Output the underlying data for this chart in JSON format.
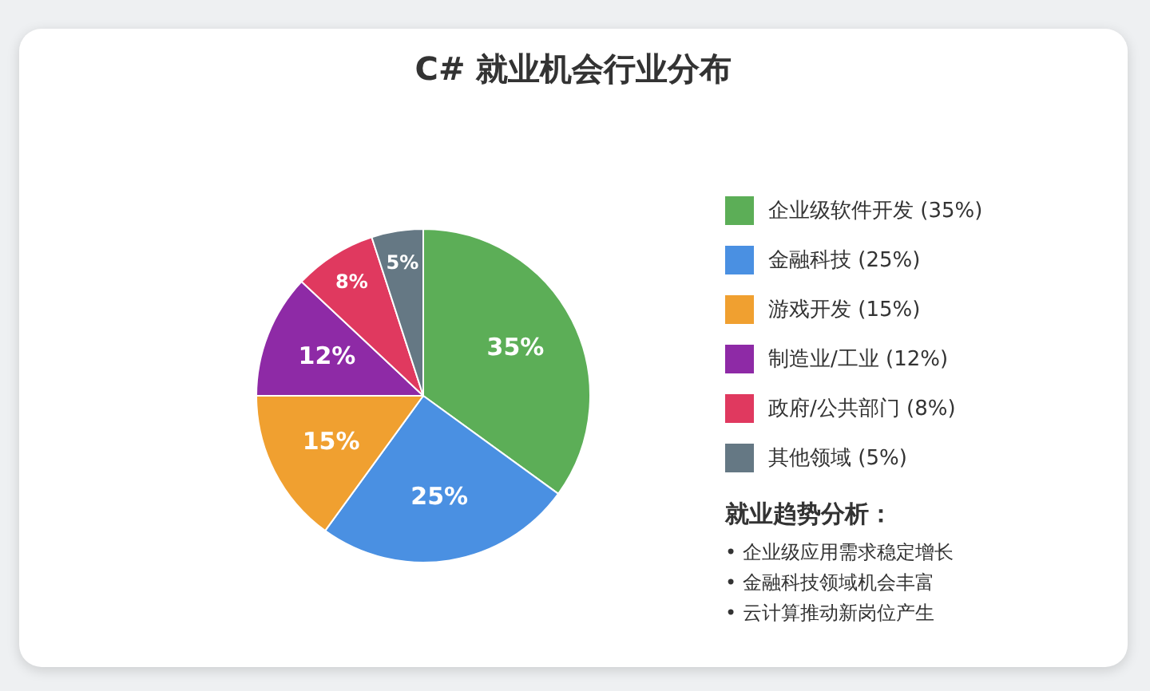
{
  "chart_data": {
    "type": "pie",
    "title": "C# 就业机会行业分布",
    "categories": [
      "企业级软件开发 (35%)",
      "金融科技 (25%)",
      "游戏开发 (15%)",
      "制造业/工业 (12%)",
      "政府/公共部门 (8%)",
      "其他领域 (5%)"
    ],
    "values": [
      35,
      25,
      15,
      12,
      8,
      5
    ],
    "value_labels": [
      "35%",
      "25%",
      "15%",
      "12%",
      "8%",
      "5%"
    ],
    "colors": [
      "#5cae57",
      "#4a90e2",
      "#f0a030",
      "#8e2aa6",
      "#e0395f",
      "#657884"
    ],
    "legend": "right",
    "annotations": [
      "就业趋势分析：",
      "• 企业级应用需求稳定增长",
      "• 金融科技领域机会丰富",
      "• 云计算推动新岗位产生"
    ]
  }
}
